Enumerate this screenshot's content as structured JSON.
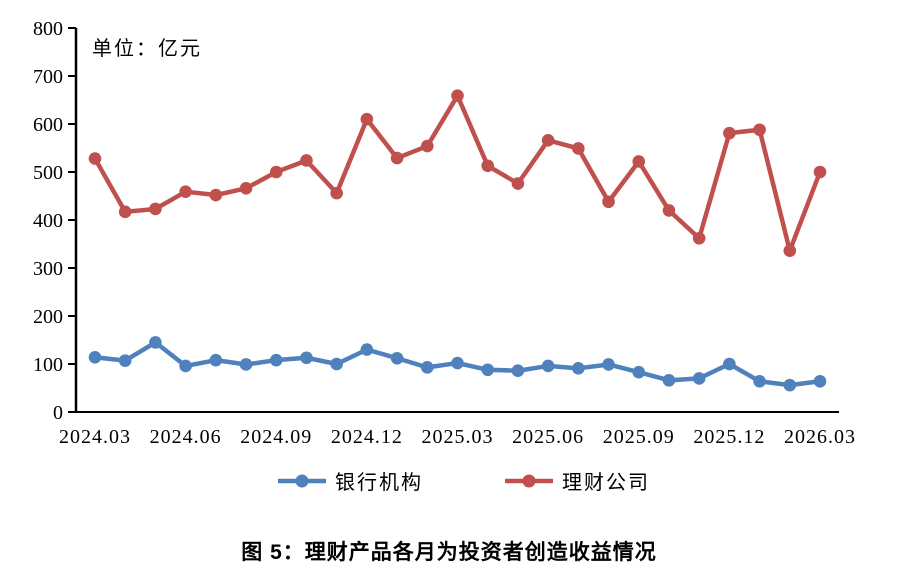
{
  "unit_label": "单位：亿元",
  "title": "图 5：理财产品各月为投资者创造收益情况",
  "colors": {
    "bank_series": "#4F81BD",
    "company_series": "#C0504D",
    "axis": "#000000"
  },
  "chart_data": {
    "type": "line",
    "title": "图 5：理财产品各月为投资者创造收益情况",
    "unit": "单位：亿元",
    "ylabel": "亿元",
    "xlabel": "",
    "ylim": [
      0,
      800
    ],
    "y_ticks": [
      0,
      100,
      200,
      300,
      400,
      500,
      600,
      700,
      800
    ],
    "grid": false,
    "legend_position": "bottom",
    "x": [
      "2024.03",
      "2024.04",
      "2024.05",
      "2024.06",
      "2024.07",
      "2024.08",
      "2024.09",
      "2024.10",
      "2024.11",
      "2024.12",
      "2025.01",
      "2025.02",
      "2025.03",
      "2025.04",
      "2025.05",
      "2025.06",
      "2025.07",
      "2025.08",
      "2025.09",
      "2025.10",
      "2025.11",
      "2025.12",
      "2026.01",
      "2026.02",
      "2026.03"
    ],
    "x_tick_labels": [
      "2024.03",
      "2024.06",
      "2024.09",
      "2024.12",
      "2025.03",
      "2025.06",
      "2025.09",
      "2025.12",
      "2026.03"
    ],
    "series": [
      {
        "name": "银行机构",
        "color": "#4F81BD",
        "values": [
          114,
          107,
          145,
          96,
          108,
          99,
          108,
          113,
          100,
          130,
          112,
          93,
          102,
          88,
          86,
          96,
          91,
          99,
          83,
          66,
          70,
          100,
          64,
          56,
          64
        ]
      },
      {
        "name": "理财公司",
        "color": "#C0504D",
        "values": [
          528,
          417,
          423,
          459,
          452,
          466,
          500,
          524,
          456,
          610,
          529,
          554,
          659,
          513,
          476,
          566,
          549,
          438,
          522,
          420,
          362,
          581,
          588,
          336,
          500
        ]
      }
    ]
  }
}
